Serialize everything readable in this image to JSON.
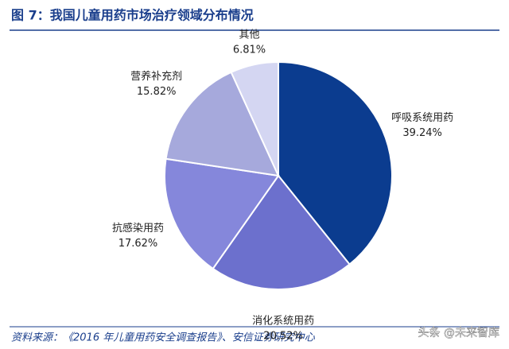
{
  "chart_data": {
    "type": "pie",
    "title": "图 7：我国儿童用药市场治疗领域分布情况",
    "categories": [
      "呼吸系统用药",
      "消化系统用药",
      "抗感染用药",
      "营养补充剂",
      "其他"
    ],
    "values": [
      39.24,
      20.52,
      17.62,
      15.82,
      6.81
    ],
    "value_labels": [
      "39.24%",
      "20.52%",
      "17.62%",
      "15.82%",
      "6.81%"
    ],
    "colors": [
      "#0b3c8f",
      "#6c70cd",
      "#8587db",
      "#a6a9dc",
      "#d4d6f2"
    ],
    "source": "资料来源：《2016 年儿童用药安全调查报告》、安信证券研究中心",
    "watermark": "头条 @未来智库"
  }
}
